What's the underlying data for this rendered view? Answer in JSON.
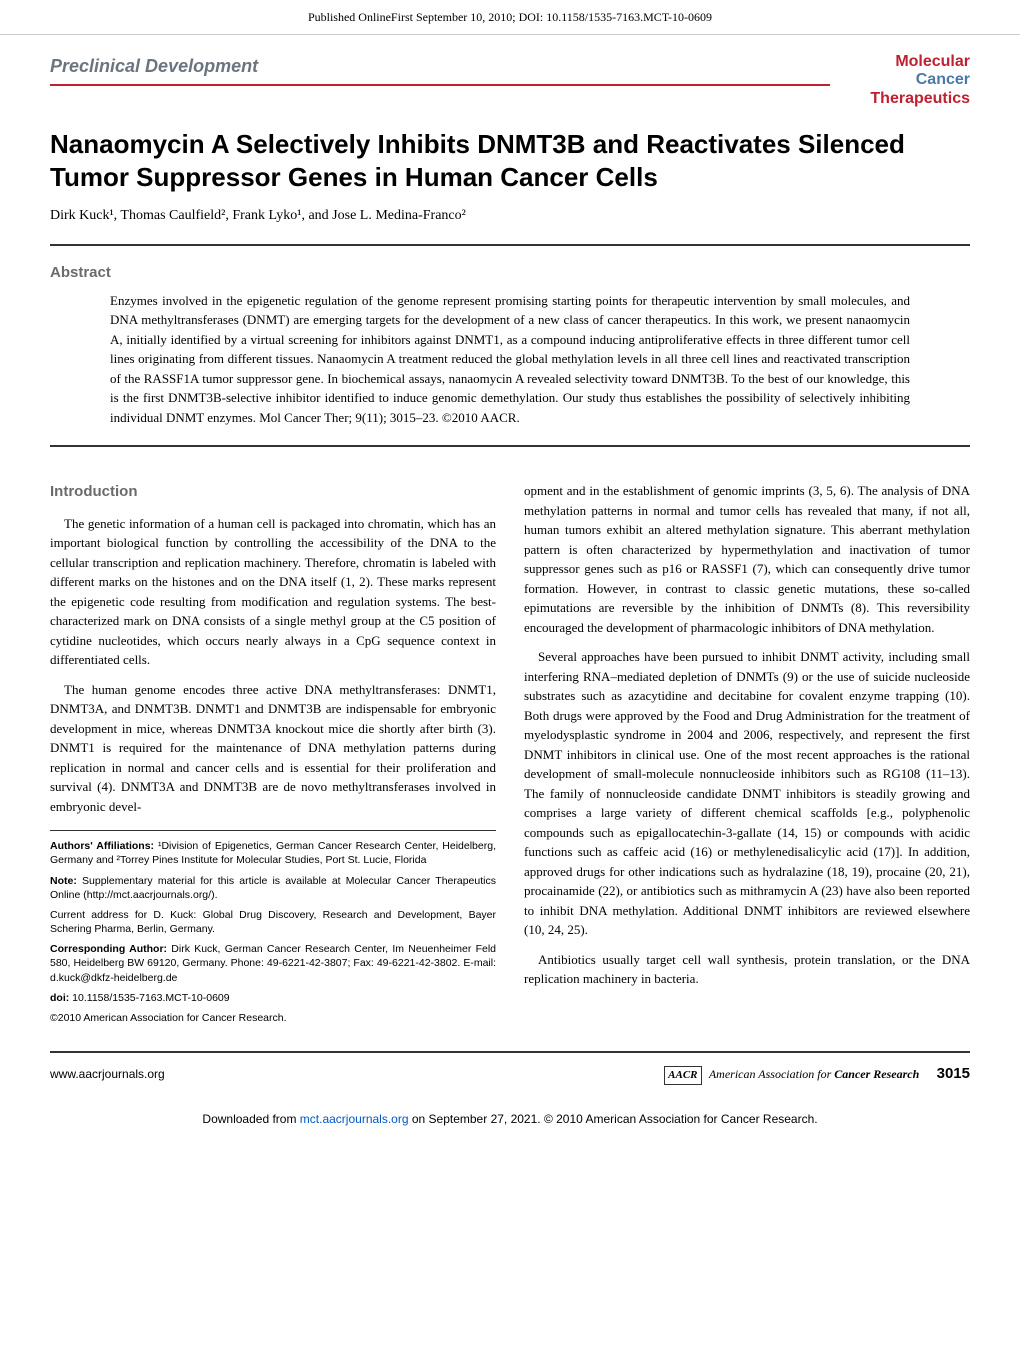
{
  "page_header": "Published OnlineFirst September 10, 2010; DOI: 10.1158/1535-7163.MCT-10-0609",
  "section_label": "Preclinical Development",
  "journal_brand": {
    "l1": "Molecular",
    "l2": "Cancer",
    "l3": "Therapeutics"
  },
  "title": "Nanaomycin A Selectively Inhibits DNMT3B and Reactivates Silenced Tumor Suppressor Genes in Human Cancer Cells",
  "authors": "Dirk Kuck¹, Thomas Caulfield², Frank Lyko¹, and Jose L. Medina-Franco²",
  "abstract": {
    "label": "Abstract",
    "text": "Enzymes involved in the epigenetic regulation of the genome represent promising starting points for therapeutic intervention by small molecules, and DNA methyltransferases (DNMT) are emerging targets for the development of a new class of cancer therapeutics. In this work, we present nanaomycin A, initially identified by a virtual screening for inhibitors against DNMT1, as a compound inducing antiproliferative effects in three different tumor cell lines originating from different tissues. Nanaomycin A treatment reduced the global methylation levels in all three cell lines and reactivated transcription of the RASSF1A tumor suppressor gene. In biochemical assays, nanaomycin A revealed selectivity toward DNMT3B. To the best of our knowledge, this is the first DNMT3B-selective inhibitor identified to induce genomic demethylation. Our study thus establishes the possibility of selectively inhibiting individual DNMT enzymes. Mol Cancer Ther; 9(11); 3015–23. ©2010 AACR."
  },
  "introduction": {
    "label": "Introduction",
    "p1": "The genetic information of a human cell is packaged into chromatin, which has an important biological function by controlling the accessibility of the DNA to the cellular transcription and replication machinery. Therefore, chromatin is labeled with different marks on the histones and on the DNA itself (1, 2). These marks represent the epigenetic code resulting from modification and regulation systems. The best-characterized mark on DNA consists of a single methyl group at the C5 position of cytidine nucleotides, which occurs nearly always in a CpG sequence context in differentiated cells.",
    "p2": "The human genome encodes three active DNA methyltransferases: DNMT1, DNMT3A, and DNMT3B. DNMT1 and DNMT3B are indispensable for embryonic development in mice, whereas DNMT3A knockout mice die shortly after birth (3). DNMT1 is required for the maintenance of DNA methylation patterns during replication in normal and cancer cells and is essential for their proliferation and survival (4). DNMT3A and DNMT3B are de novo methyltransferases involved in embryonic devel-",
    "p3": "opment and in the establishment of genomic imprints (3, 5, 6). The analysis of DNA methylation patterns in normal and tumor cells has revealed that many, if not all, human tumors exhibit an altered methylation signature. This aberrant methylation pattern is often characterized by hypermethylation and inactivation of tumor suppressor genes such as p16 or RASSF1 (7), which can consequently drive tumor formation. However, in contrast to classic genetic mutations, these so-called epimutations are reversible by the inhibition of DNMTs (8). This reversibility encouraged the development of pharmacologic inhibitors of DNA methylation.",
    "p4": "Several approaches have been pursued to inhibit DNMT activity, including small interfering RNA–mediated depletion of DNMTs (9) or the use of suicide nucleoside substrates such as azacytidine and decitabine for covalent enzyme trapping (10). Both drugs were approved by the Food and Drug Administration for the treatment of myelodysplastic syndrome in 2004 and 2006, respectively, and represent the first DNMT inhibitors in clinical use. One of the most recent approaches is the rational development of small-molecule nonnucleoside inhibitors such as RG108 (11–13). The family of nonnucleoside candidate DNMT inhibitors is steadily growing and comprises a large variety of different chemical scaffolds [e.g., polyphenolic compounds such as epigallocatechin-3-gallate (14, 15) or compounds with acidic functions such as caffeic acid (16) or methylenedisalicylic acid (17)]. In addition, approved drugs for other indications such as hydralazine (18, 19), procaine (20, 21), procainamide (22), or antibiotics such as mithramycin A (23) have also been reported to inhibit DNA methylation. Additional DNMT inhibitors are reviewed elsewhere (10, 24, 25).",
    "p5": "Antibiotics usually target cell wall synthesis, protein translation, or the DNA replication machinery in bacteria."
  },
  "author_info": {
    "affiliations_label": "Authors' Affiliations:",
    "affiliations": " ¹Division of Epigenetics, German Cancer Research Center, Heidelberg, Germany and ²Torrey Pines Institute for Molecular Studies, Port St. Lucie, Florida",
    "note_label": "Note:",
    "note": " Supplementary material for this article is available at Molecular Cancer Therapeutics Online (http://mct.aacrjournals.org/).",
    "current_addr": "Current address for D. Kuck: Global Drug Discovery, Research and Development, Bayer Schering Pharma, Berlin, Germany.",
    "corr_label": "Corresponding Author:",
    "corr": " Dirk Kuck, German Cancer Research Center, Im Neuenheimer Feld 580, Heidelberg BW 69120, Germany. Phone: 49-6221-42-3807; Fax: 49-6221-42-3802. E-mail: d.kuck@dkfz-heidelberg.de",
    "doi_label": "doi:",
    "doi": " 10.1158/1535-7163.MCT-10-0609",
    "copyright": "©2010 American Association for Cancer Research."
  },
  "footer": {
    "url": "www.aacrjournals.org",
    "aacr_logo": "AACR",
    "aacr_text": "American Association for Cancer Research",
    "page_num": "3015"
  },
  "dl_footer": {
    "pre": "Downloaded from ",
    "link": "mct.aacrjournals.org",
    "post": " on September 27, 2021. © 2010 American Association for Cancer Research."
  },
  "colors": {
    "red": "#c02030",
    "blue": "#4b79a7",
    "gray": "#6b6b6b",
    "link": "#0057c8"
  }
}
